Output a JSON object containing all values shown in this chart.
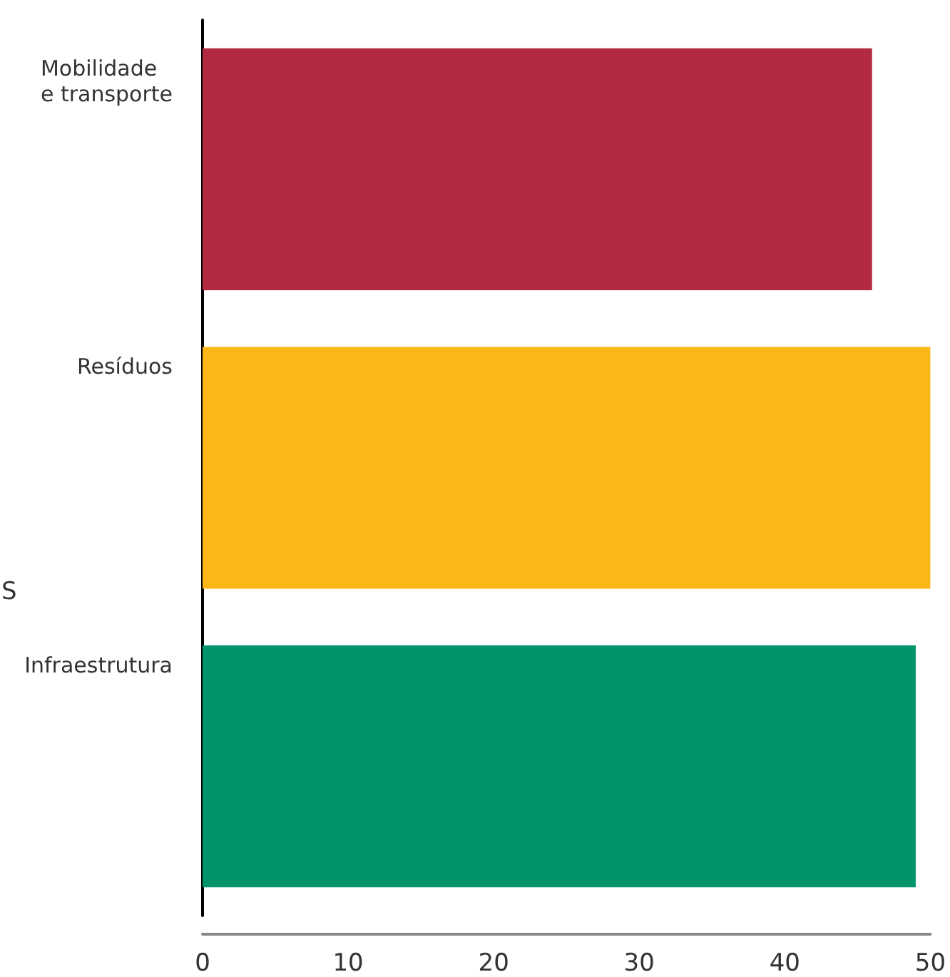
{
  "chart_data": {
    "type": "bar",
    "orientation": "horizontal",
    "categories": [
      "Mobilidade\ne transporte",
      "Resíduos",
      "Infraestrutura"
    ],
    "values": [
      46,
      50,
      49
    ],
    "colors": [
      "#b22a42",
      "#fbb715",
      "#00946d"
    ],
    "xlim": [
      0,
      50
    ],
    "xticks": [
      0,
      10,
      20,
      30,
      40,
      50
    ],
    "grid": false,
    "annotations": [
      "S"
    ]
  }
}
